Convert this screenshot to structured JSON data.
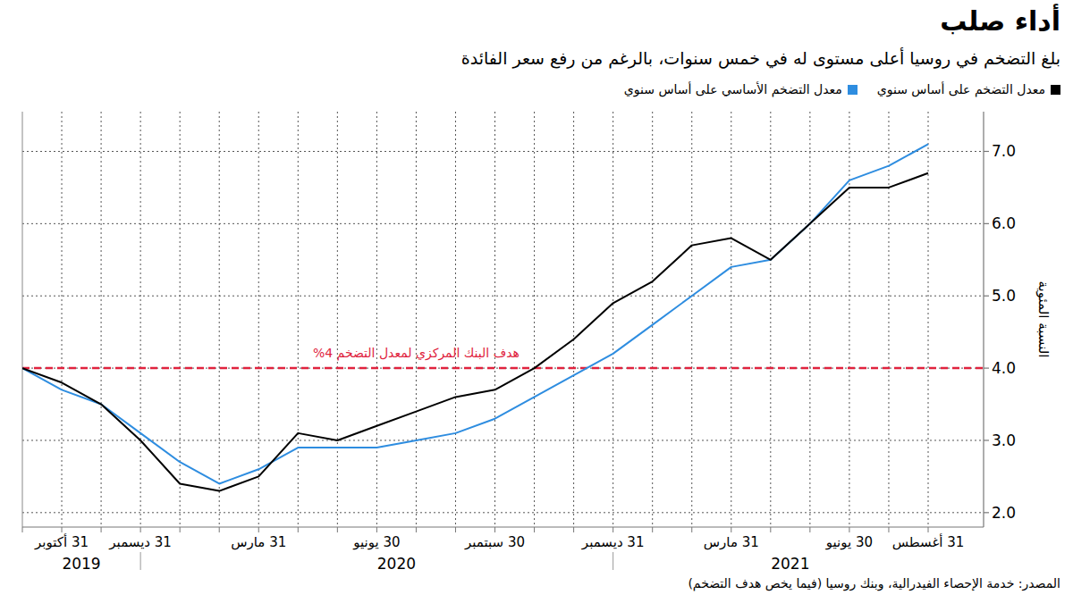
{
  "chart_data": {
    "type": "line",
    "title": "أداء صلب",
    "subtitle": "بلغ التضخم في روسيا أعلى مستوى له في خمس سنوات، بالرغم من رفع سعر الفائدة",
    "y_label": "النسبة المئوية",
    "source": "المصدر: خدمة الإحصاء الفيدرالية، وبنك روسيا (فيما يخص هدف التضخم)",
    "categories": [
      null,
      "31 أكتوبر",
      null,
      "31 ديسمبر",
      null,
      null,
      "31 مارس",
      null,
      null,
      "30 يونيو",
      null,
      null,
      "30 سبتمبر",
      null,
      null,
      "31 ديسمبر",
      null,
      null,
      "31 مارس",
      null,
      null,
      "30 يونيو",
      null,
      "31 أغسطس"
    ],
    "x_groups": [
      {
        "label": "2019",
        "from": 0,
        "to": 3
      },
      {
        "label": "2020",
        "from": 4,
        "to": 15
      },
      {
        "label": "2021",
        "from": 16,
        "to": 23
      }
    ],
    "series": [
      {
        "name": "معدل التضخم على أساس سنوي",
        "color": "#000000",
        "values": [
          4.0,
          3.8,
          3.5,
          3.0,
          2.4,
          2.3,
          2.5,
          3.1,
          3.0,
          3.2,
          3.4,
          3.6,
          3.7,
          4.0,
          4.4,
          4.9,
          5.2,
          5.7,
          5.8,
          5.5,
          6.0,
          6.5,
          6.5,
          6.7
        ]
      },
      {
        "name": "معدل التضخم الأساسي على أساس سنوي",
        "color": "#2e8de0",
        "values": [
          4.0,
          3.7,
          3.5,
          3.1,
          2.7,
          2.4,
          2.6,
          2.9,
          2.9,
          2.9,
          3.0,
          3.1,
          3.3,
          3.6,
          3.9,
          4.2,
          4.6,
          5.0,
          5.4,
          5.5,
          6.0,
          6.6,
          6.8,
          7.1
        ]
      }
    ],
    "reference_line": {
      "value": 4,
      "label": "هدف البنك المركزي لمعدل التضخم 4%",
      "color": "#e0233e"
    },
    "ylim": [
      1.8,
      7.55
    ],
    "yticks": [
      {
        "value": 2,
        "label": "2.0"
      },
      {
        "value": 3,
        "label": "3.0"
      },
      {
        "value": 4,
        "label": "4.0"
      },
      {
        "value": 5,
        "label": "5.0"
      },
      {
        "value": 6,
        "label": "6.0"
      },
      {
        "value": 7,
        "label": "7.0"
      }
    ],
    "grid": true,
    "legend": "top-right"
  }
}
